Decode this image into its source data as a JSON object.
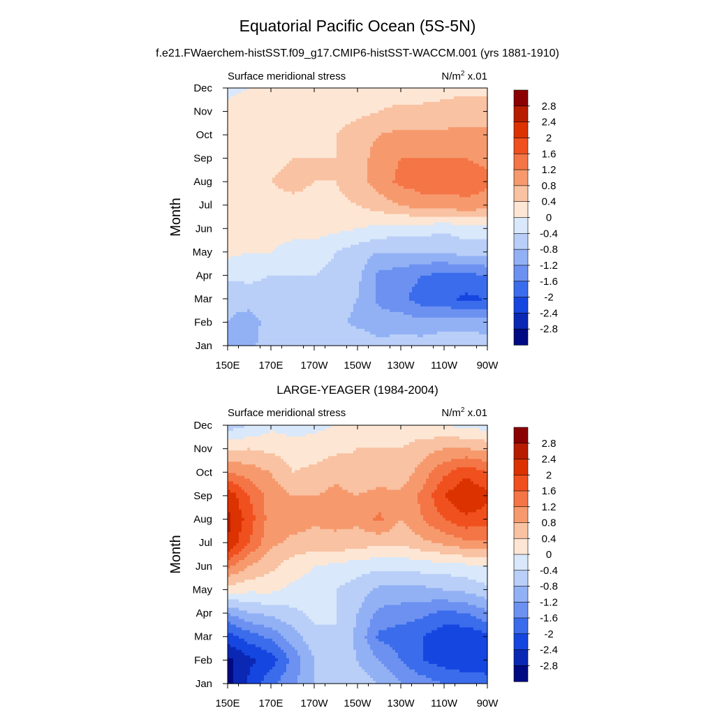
{
  "figure": {
    "title": "Equatorial Pacific Ocean (5S-5N)",
    "subtitle": "f.e21.FWaerchem-histSST.f09_g17.CMIP6-histSST-WACCM.001 (yrs 1881-1910)"
  },
  "colorbar": {
    "levels": [
      "2.8",
      "2.4",
      "2",
      "1.6",
      "1.2",
      "0.8",
      "0.4",
      "0",
      "-0.4",
      "-0.8",
      "-1.2",
      "-1.6",
      "-2",
      "-2.4",
      "-2.8"
    ],
    "colors": [
      "#8b0000",
      "#b71c00",
      "#dc3200",
      "#f0501e",
      "#f47546",
      "#f69a6e",
      "#f9c2a2",
      "#fde6d4",
      "#d9e8fa",
      "#b9cff8",
      "#92b1f5",
      "#6c91f1",
      "#3a6cec",
      "#1646e0",
      "#0a28b4",
      "#000a82"
    ]
  },
  "chart_data": [
    {
      "type": "heatmap",
      "title": "",
      "left_label": "Surface meridional stress",
      "right_label": "N/m",
      "right_label_sup": "2",
      "right_label_suffix": " x.01",
      "ylabel": "Month",
      "xlabel": "",
      "x_ticks": [
        "150E",
        "170E",
        "170W",
        "150W",
        "130W",
        "110W",
        "90W"
      ],
      "y_ticks": [
        "Jan",
        "Feb",
        "Mar",
        "Apr",
        "May",
        "Jun",
        "Jul",
        "Aug",
        "Sep",
        "Oct",
        "Nov",
        "Dec"
      ],
      "x": [
        150,
        160,
        170,
        180,
        190,
        200,
        210,
        220,
        230,
        240,
        250,
        260,
        270
      ],
      "z": [
        [
          -0.8,
          -0.9,
          -0.6,
          -0.6,
          -0.6,
          -0.6,
          -0.5,
          -0.7,
          -0.6,
          -0.6,
          -0.5,
          -0.5,
          -0.6
        ],
        [
          -0.8,
          -1.0,
          -0.6,
          -0.6,
          -0.6,
          -0.7,
          -0.9,
          -1.0,
          -1.0,
          -1.1,
          -1.0,
          -1.0,
          -1.0
        ],
        [
          -0.7,
          -0.6,
          -0.6,
          -0.6,
          -0.6,
          -0.6,
          -0.8,
          -1.3,
          -1.5,
          -1.8,
          -1.9,
          -2.1,
          -2.0
        ],
        [
          -0.3,
          -0.3,
          -0.4,
          -0.4,
          -0.4,
          -0.5,
          -0.7,
          -1.3,
          -1.4,
          -1.6,
          -1.7,
          -1.7,
          -1.6
        ],
        [
          0.1,
          0.0,
          0.0,
          -0.2,
          -0.2,
          -0.4,
          -0.6,
          -0.8,
          -0.8,
          -0.8,
          -0.8,
          -0.6,
          -0.6
        ],
        [
          0.2,
          0.2,
          0.2,
          0.2,
          0.2,
          0.1,
          0.0,
          -0.1,
          -0.2,
          -0.2,
          -0.3,
          -0.2,
          -0.2
        ],
        [
          0.3,
          0.3,
          0.3,
          0.3,
          0.3,
          0.3,
          0.4,
          0.6,
          0.8,
          1.0,
          1.0,
          1.1,
          1.0
        ],
        [
          0.4,
          0.4,
          0.4,
          0.5,
          0.4,
          0.4,
          0.6,
          1.0,
          1.3,
          1.4,
          1.4,
          1.4,
          1.3
        ],
        [
          0.4,
          0.3,
          0.3,
          0.4,
          0.4,
          0.4,
          0.6,
          1.0,
          1.2,
          1.2,
          1.2,
          1.2,
          1.1
        ],
        [
          0.2,
          0.2,
          0.3,
          0.3,
          0.3,
          0.4,
          0.6,
          0.8,
          0.9,
          0.9,
          0.9,
          0.9,
          0.9
        ],
        [
          0.1,
          0.2,
          0.2,
          0.2,
          0.2,
          0.2,
          0.3,
          0.4,
          0.5,
          0.5,
          0.5,
          0.6,
          0.6
        ],
        [
          -0.1,
          0.0,
          0.0,
          0.0,
          0.1,
          0.1,
          0.1,
          0.2,
          0.2,
          0.2,
          0.3,
          0.3,
          0.3
        ]
      ],
      "zlim": [
        -2.8,
        2.8
      ]
    },
    {
      "type": "heatmap",
      "title": "LARGE-YEAGER (1984-2004)",
      "left_label": "Surface meridional stress",
      "right_label": "N/m",
      "right_label_sup": "2",
      "right_label_suffix": " x.01",
      "ylabel": "Month",
      "xlabel": "",
      "x_ticks": [
        "150E",
        "170E",
        "170W",
        "150W",
        "130W",
        "110W",
        "90W"
      ],
      "y_ticks": [
        "Jan",
        "Feb",
        "Mar",
        "Apr",
        "May",
        "Jun",
        "Jul",
        "Aug",
        "Sep",
        "Oct",
        "Nov",
        "Dec"
      ],
      "x": [
        150,
        160,
        170,
        180,
        190,
        200,
        210,
        220,
        230,
        240,
        250,
        260,
        270
      ],
      "z": [
        [
          -3.0,
          -2.3,
          -1.7,
          -1.3,
          -0.8,
          -0.7,
          -0.6,
          -0.8,
          -1.2,
          -1.4,
          -1.6,
          -1.6,
          -1.8
        ],
        [
          -2.9,
          -2.5,
          -2.2,
          -1.5,
          -0.8,
          -0.6,
          -0.8,
          -1.2,
          -1.6,
          -2.0,
          -2.2,
          -2.4,
          -2.3
        ],
        [
          -2.2,
          -1.8,
          -1.5,
          -1.0,
          -0.5,
          -0.4,
          -0.9,
          -1.7,
          -1.8,
          -2.0,
          -2.3,
          -2.3,
          -2.1
        ],
        [
          -1.2,
          -0.8,
          -0.7,
          -0.5,
          -0.3,
          -0.4,
          -0.8,
          -1.3,
          -1.4,
          -1.5,
          -1.7,
          -1.6,
          -1.3
        ],
        [
          0.2,
          0.1,
          0.1,
          -0.1,
          -0.2,
          -0.4,
          -0.6,
          -0.9,
          -0.9,
          -0.9,
          -0.8,
          -0.7,
          -0.5
        ],
        [
          1.3,
          0.8,
          0.5,
          0.2,
          0.0,
          -0.1,
          -0.2,
          -0.3,
          -0.3,
          -0.2,
          -0.2,
          -0.1,
          0.0
        ],
        [
          2.4,
          1.6,
          0.9,
          0.7,
          0.6,
          0.7,
          0.6,
          0.5,
          0.5,
          0.7,
          0.9,
          1.1,
          1.1
        ],
        [
          2.5,
          1.8,
          1.0,
          1.0,
          0.9,
          0.9,
          0.9,
          1.3,
          0.8,
          1.2,
          1.6,
          1.9,
          1.8
        ],
        [
          2.3,
          1.6,
          1.0,
          0.8,
          0.8,
          0.9,
          0.8,
          1.0,
          0.9,
          1.3,
          2.0,
          2.4,
          2.1
        ],
        [
          1.2,
          1.0,
          0.8,
          0.4,
          0.5,
          0.7,
          0.5,
          0.4,
          0.5,
          1.0,
          1.5,
          1.9,
          1.6
        ],
        [
          0.3,
          0.4,
          0.3,
          0.2,
          0.2,
          0.3,
          0.4,
          0.4,
          0.4,
          0.6,
          0.8,
          0.8,
          0.7
        ],
        [
          -0.6,
          -0.4,
          -0.1,
          -0.2,
          -0.1,
          0.0,
          0.1,
          0.3,
          0.2,
          0.1,
          0.0,
          -0.1,
          -0.2
        ]
      ],
      "zlim": [
        -2.8,
        2.8
      ]
    }
  ]
}
